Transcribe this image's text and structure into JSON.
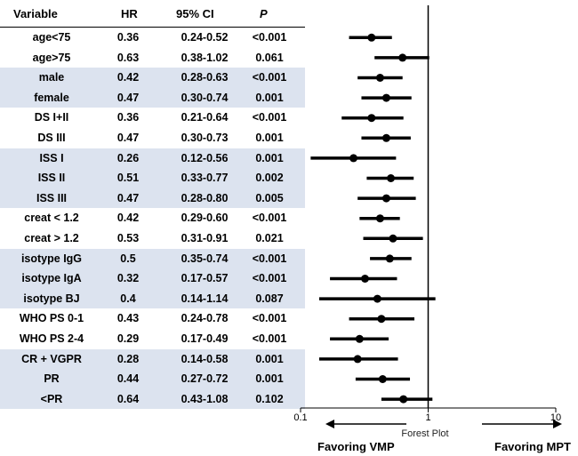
{
  "table": {
    "headers": [
      "Variable",
      "HR",
      "95% CI",
      "P"
    ],
    "rows": [
      {
        "variable": "age<75",
        "hr": "0.36",
        "ci": "0.24-0.52",
        "p": "<0.001",
        "shade": false
      },
      {
        "variable": "age>75",
        "hr": "0.63",
        "ci": "0.38-1.02",
        "p": "0.061",
        "shade": false
      },
      {
        "variable": "male",
        "hr": "0.42",
        "ci": "0.28-0.63",
        "p": "<0.001",
        "shade": true
      },
      {
        "variable": "female",
        "hr": "0.47",
        "ci": "0.30-0.74",
        "p": "0.001",
        "shade": true
      },
      {
        "variable": "DS I+II",
        "hr": "0.36",
        "ci": "0.21-0.64",
        "p": "<0.001",
        "shade": false
      },
      {
        "variable": "DS III",
        "hr": "0.47",
        "ci": "0.30-0.73",
        "p": "0.001",
        "shade": false
      },
      {
        "variable": "ISS I",
        "hr": "0.26",
        "ci": "0.12-0.56",
        "p": "0.001",
        "shade": true
      },
      {
        "variable": "ISS II",
        "hr": "0.51",
        "ci": "0.33-0.77",
        "p": "0.002",
        "shade": true
      },
      {
        "variable": "ISS III",
        "hr": "0.47",
        "ci": "0.28-0.80",
        "p": "0.005",
        "shade": true
      },
      {
        "variable": "creat < 1.2",
        "hr": "0.42",
        "ci": "0.29-0.60",
        "p": "<0.001",
        "shade": false
      },
      {
        "variable": "creat > 1.2",
        "hr": "0.53",
        "ci": "0.31-0.91",
        "p": "0.021",
        "shade": false
      },
      {
        "variable": "isotype IgG",
        "hr": "0.5",
        "ci": "0.35-0.74",
        "p": "<0.001",
        "shade": true
      },
      {
        "variable": "isotype IgA",
        "hr": "0.32",
        "ci": "0.17-0.57",
        "p": "<0.001",
        "shade": true
      },
      {
        "variable": "isotype BJ",
        "hr": "0.4",
        "ci": "0.14-1.14",
        "p": "0.087",
        "shade": true
      },
      {
        "variable": "WHO PS 0-1",
        "hr": "0.43",
        "ci": "0.24-0.78",
        "p": "<0.001",
        "shade": false
      },
      {
        "variable": "WHO PS 2-4",
        "hr": "0.29",
        "ci": "0.17-0.49",
        "p": "<0.001",
        "shade": false
      },
      {
        "variable": "CR + VGPR",
        "hr": "0.28",
        "ci": "0.14-0.58",
        "p": "0.001",
        "shade": true
      },
      {
        "variable": "PR",
        "hr": "0.44",
        "ci": "0.27-0.72",
        "p": "0.001",
        "shade": true
      },
      {
        "variable": "<PR",
        "hr": "0.64",
        "ci": "0.43-1.08",
        "p": "0.102",
        "shade": true
      }
    ]
  },
  "chart_data": {
    "type": "scatter",
    "title": "Forest Plot",
    "x_scale": "log",
    "xlim": [
      0.1,
      10
    ],
    "x_tick_labels": [
      "0.1",
      "1",
      "10"
    ],
    "reference_line": 1,
    "categories": [
      "age<75",
      "age>75",
      "male",
      "female",
      "DS I+II",
      "DS III",
      "ISS I",
      "ISS II",
      "ISS III",
      "creat < 1.2",
      "creat > 1.2",
      "isotype IgG",
      "isotype IgA",
      "isotype BJ",
      "WHO PS 0-1",
      "WHO PS 2-4",
      "CR + VGPR",
      "PR",
      "<PR"
    ],
    "hr": [
      0.36,
      0.63,
      0.42,
      0.47,
      0.36,
      0.47,
      0.26,
      0.51,
      0.47,
      0.42,
      0.53,
      0.5,
      0.32,
      0.4,
      0.43,
      0.29,
      0.28,
      0.44,
      0.64
    ],
    "ci_low": [
      0.24,
      0.38,
      0.28,
      0.3,
      0.21,
      0.3,
      0.12,
      0.33,
      0.28,
      0.29,
      0.31,
      0.35,
      0.17,
      0.14,
      0.24,
      0.17,
      0.14,
      0.27,
      0.43
    ],
    "ci_high": [
      0.52,
      1.02,
      0.63,
      0.74,
      0.64,
      0.73,
      0.56,
      0.77,
      0.8,
      0.6,
      0.91,
      0.74,
      0.57,
      1.14,
      0.78,
      0.49,
      0.58,
      0.72,
      1.08
    ],
    "left_label": "Favoring VMP",
    "right_label": "Favoring MPT",
    "colors": {
      "marks": "#000000",
      "shade": "#dce3ef"
    }
  }
}
